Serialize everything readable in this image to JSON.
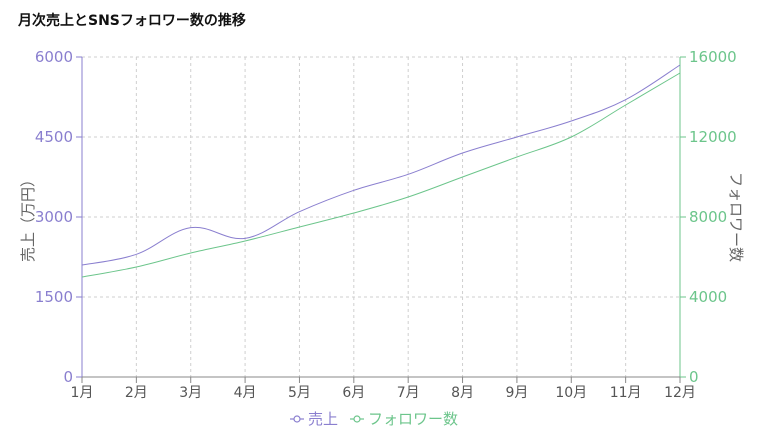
{
  "chart_data": {
    "type": "line",
    "title": "月次売上とSNSフォロワー数の推移",
    "categories": [
      "1月",
      "2月",
      "3月",
      "4月",
      "5月",
      "6月",
      "7月",
      "8月",
      "9月",
      "10月",
      "11月",
      "12月"
    ],
    "y_left": {
      "label": "売上（万円）",
      "ticks": [
        "0",
        "1500",
        "3000",
        "4500",
        "6000"
      ],
      "lim": [
        0,
        6000
      ]
    },
    "y_right": {
      "label": "フォロワー数",
      "ticks": [
        "0",
        "4000",
        "8000",
        "12000",
        "16000"
      ],
      "lim": [
        0,
        16000
      ]
    },
    "series": [
      {
        "name": "売上",
        "axis": "left",
        "color": "#8a7fcf",
        "values": [
          2100,
          2300,
          2800,
          2600,
          3100,
          3500,
          3800,
          4200,
          4500,
          4800,
          5200,
          5850
        ]
      },
      {
        "name": "フォロワー数",
        "axis": "right",
        "color": "#6cc58b",
        "values": [
          5000,
          5500,
          6200,
          6800,
          7500,
          8200,
          9000,
          10000,
          11000,
          12000,
          13600,
          15200
        ]
      }
    ],
    "grid": true,
    "legend": "bottom-center"
  }
}
